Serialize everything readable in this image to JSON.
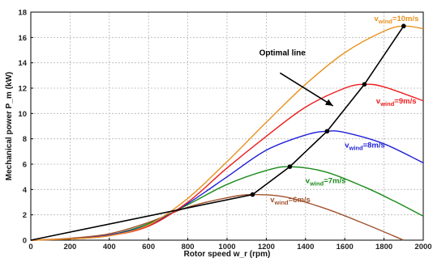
{
  "chart_data": {
    "type": "line",
    "xlabel": "Rotor speed w_r (rpm)",
    "ylabel": "Mechanical power P_m (kW)",
    "xlim": [
      0,
      2000
    ],
    "ylim": [
      0,
      18
    ],
    "x_ticks": [
      0,
      200,
      400,
      600,
      800,
      1000,
      1200,
      1400,
      1600,
      1800,
      2000
    ],
    "y_ticks": [
      0,
      2,
      4,
      6,
      8,
      10,
      12,
      14,
      16,
      18
    ],
    "grid": true,
    "series": [
      {
        "name": "v_wind=6m/s",
        "label_parts": [
          "v",
          "wind",
          "=6m/s"
        ],
        "color": "#a0522d",
        "x": [
          0,
          200,
          400,
          600,
          800,
          1000,
          1130,
          1300,
          1500,
          1700,
          1900
        ],
        "y": [
          0,
          0.15,
          0.5,
          1.4,
          2.6,
          3.35,
          3.6,
          3.4,
          2.5,
          1.3,
          0
        ]
      },
      {
        "name": "v_wind=7m/s",
        "label_parts": [
          "v",
          "wind",
          "=7m/s"
        ],
        "color": "#1a8a1a",
        "x": [
          0,
          200,
          400,
          600,
          800,
          1000,
          1200,
          1320,
          1500,
          1700,
          1850,
          2000
        ],
        "y": [
          0,
          0.1,
          0.4,
          1.3,
          2.8,
          4.4,
          5.5,
          5.8,
          5.4,
          4.2,
          3.1,
          1.9
        ]
      },
      {
        "name": "v_wind=8m/s",
        "label_parts": [
          "v",
          "wind",
          "=8m/s"
        ],
        "color": "#1f1fd8",
        "x": [
          0,
          200,
          400,
          600,
          800,
          1000,
          1200,
          1400,
          1510,
          1600,
          1800,
          2000
        ],
        "y": [
          0,
          0.1,
          0.4,
          1.2,
          2.9,
          5.0,
          7.1,
          8.3,
          8.6,
          8.5,
          7.6,
          6.1
        ]
      },
      {
        "name": "v_wind=9m/s",
        "label_parts": [
          "v",
          "wind",
          "=9m/s"
        ],
        "color": "#ee1c1c",
        "x": [
          0,
          200,
          400,
          600,
          800,
          1000,
          1200,
          1400,
          1600,
          1700,
          1800,
          2000
        ],
        "y": [
          0,
          0.1,
          0.35,
          1.1,
          3.0,
          5.7,
          8.2,
          10.5,
          12.0,
          12.3,
          12.1,
          11.0
        ]
      },
      {
        "name": "v_wind=10m/s",
        "label_parts": [
          "v",
          "wind",
          "=10m/s"
        ],
        "color": "#e8921e",
        "x": [
          0,
          200,
          400,
          600,
          800,
          1000,
          1200,
          1400,
          1600,
          1800,
          1900,
          2000
        ],
        "y": [
          0,
          0.1,
          0.35,
          1.2,
          3.3,
          6.2,
          9.3,
          12.3,
          14.8,
          16.5,
          16.9,
          16.7
        ]
      },
      {
        "name": "Optimal line",
        "color": "#000000",
        "x": [
          0,
          1130,
          1320,
          1510,
          1700,
          1900
        ],
        "y": [
          0,
          3.6,
          5.8,
          8.6,
          12.3,
          16.9
        ]
      }
    ],
    "optimal_points": [
      {
        "x": 1130,
        "y": 3.6
      },
      {
        "x": 1320,
        "y": 5.8
      },
      {
        "x": 1510,
        "y": 8.6
      },
      {
        "x": 1700,
        "y": 12.3
      },
      {
        "x": 1900,
        "y": 16.9
      }
    ],
    "annotations": [
      {
        "text": "Optimal line",
        "at": [
          1400,
          14.6
        ],
        "arrow_from": [
          1270,
          13.2
        ],
        "arrow_to": [
          1540,
          10.6
        ]
      }
    ]
  }
}
